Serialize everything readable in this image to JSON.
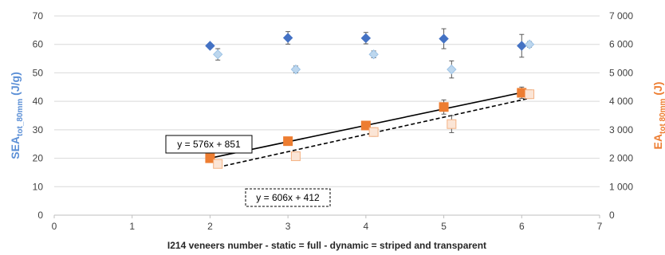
{
  "chart_data": {
    "type": "scatter",
    "xlabel": "I214 veneers number  - static = full - dynamic = striped and transparent",
    "ylabel_left": {
      "main": "SEA",
      "sub": "tot_80mm",
      "unit": " (J/g)"
    },
    "ylabel_right": {
      "main": "EA",
      "sub": "tot  80mm",
      "unit": " (J)"
    },
    "xlim": [
      0,
      7
    ],
    "ylim_left": [
      0,
      70
    ],
    "ylim_right": [
      0,
      7000
    ],
    "x_ticks": [
      "0",
      "1",
      "2",
      "3",
      "4",
      "5",
      "6",
      "7"
    ],
    "y_left_ticks": [
      "0",
      "10",
      "20",
      "30",
      "40",
      "50",
      "60",
      "70"
    ],
    "y_right_ticks": [
      "0",
      "1 000",
      "2 000",
      "3 000",
      "4 000",
      "5 000",
      "6 000",
      "7 000"
    ],
    "grid": "horizontal",
    "series": [
      {
        "axis": "left",
        "marker": "diamond",
        "fill": "#4472c4",
        "stroke": "#4472c4",
        "points": [
          {
            "x": 2,
            "y": 59.5,
            "err": 0.5
          },
          {
            "x": 3,
            "y": 62.3,
            "err": 2.2
          },
          {
            "x": 4,
            "y": 62.2,
            "err": 2.0
          },
          {
            "x": 5,
            "y": 62.0,
            "err": 3.5
          },
          {
            "x": 6,
            "y": 59.5,
            "err": 4.0
          }
        ]
      },
      {
        "axis": "left",
        "marker": "diamond",
        "fill": "#bdd7ee",
        "stroke": "#9dc3e6",
        "points": [
          {
            "x": 2.1,
            "y": 56.5,
            "err": 2.0
          },
          {
            "x": 3.1,
            "y": 51.2,
            "err": 1.2
          },
          {
            "x": 4.1,
            "y": 56.5,
            "err": 1.2
          },
          {
            "x": 5.1,
            "y": 51.2,
            "err": 3.0
          },
          {
            "x": 6.1,
            "y": 60.0,
            "err": 1.0
          }
        ]
      },
      {
        "axis": "right",
        "marker": "square",
        "fill": "#ed7d31",
        "stroke": "#ed7d31",
        "points": [
          {
            "x": 2,
            "y": 2000,
            "err": 100
          },
          {
            "x": 3,
            "y": 2600,
            "err": 100
          },
          {
            "x": 4,
            "y": 3150,
            "err": 150
          },
          {
            "x": 5,
            "y": 3800,
            "err": 250
          },
          {
            "x": 6,
            "y": 4300,
            "err": 200
          }
        ]
      },
      {
        "axis": "right",
        "marker": "square",
        "fill": "#fbe5d6",
        "stroke": "#f4b183",
        "points": [
          {
            "x": 2.1,
            "y": 1800,
            "err": 100
          },
          {
            "x": 3.1,
            "y": 2070,
            "err": 150
          },
          {
            "x": 4.1,
            "y": 2920,
            "err": 150
          },
          {
            "x": 5.1,
            "y": 3200,
            "err": 300
          },
          {
            "x": 6.1,
            "y": 4250,
            "err": 150
          }
        ]
      }
    ],
    "trendlines": [
      {
        "axis": "right",
        "slope": 576,
        "intercept": 851,
        "x_range": [
          2,
          6
        ],
        "style": "solid",
        "color": "#000000",
        "label": "y = 576x + 851",
        "box_style": "solid"
      },
      {
        "axis": "right",
        "slope": 606,
        "intercept": 412,
        "x_range": [
          2.1,
          6.1
        ],
        "style": "dashed",
        "color": "#000000",
        "label": "y = 606x + 412",
        "box_style": "dashed"
      }
    ]
  }
}
